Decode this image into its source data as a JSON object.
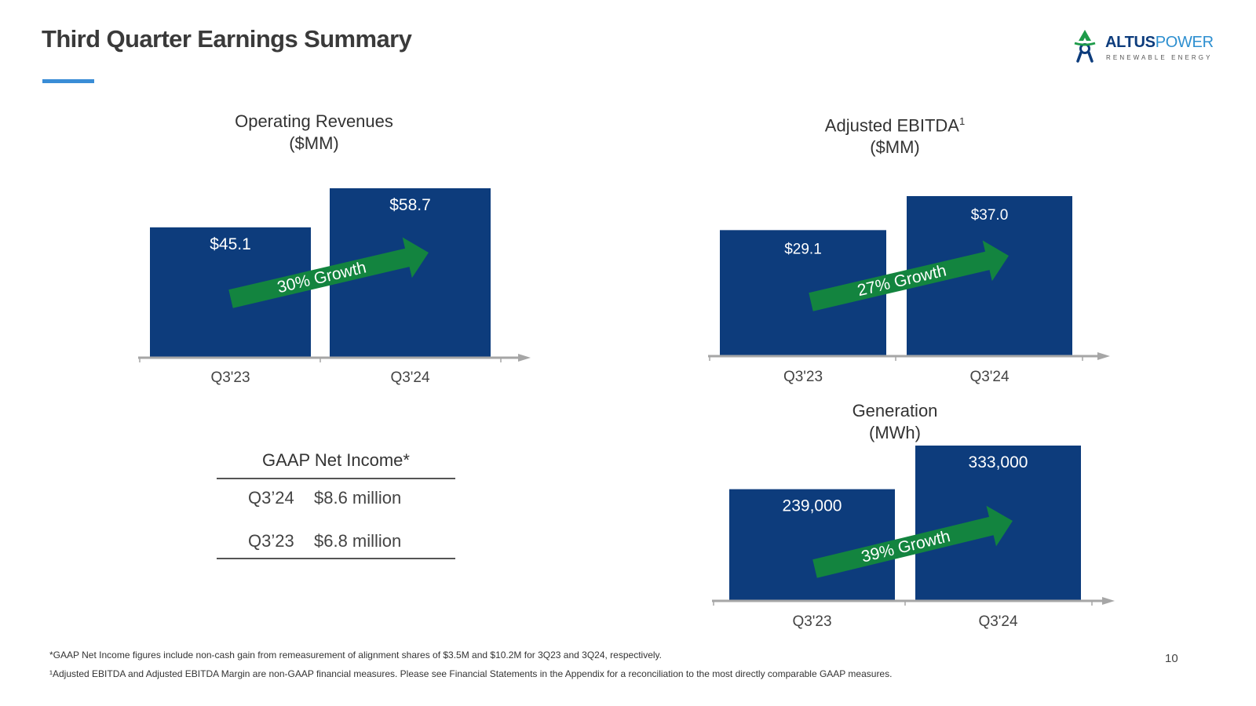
{
  "slide": {
    "title": "Third Quarter Earnings Summary",
    "page_number": "10"
  },
  "logo": {
    "word_altus": "ALTUS",
    "word_power": "POWER",
    "tagline": "RENEWABLE ENERGY",
    "colors": {
      "navy": "#0d3c7c",
      "blue": "#2d8fd0",
      "green": "#1e9b4a"
    }
  },
  "colors": {
    "bar": "#0d3c7c",
    "growth_arrow": "#13843f",
    "axis": "#a6a6a6"
  },
  "chart_data": [
    {
      "type": "bar",
      "title": "Operating Revenues",
      "units": "($MM)",
      "categories": [
        "Q3'23",
        "Q3'24"
      ],
      "values": [
        45.1,
        58.7
      ],
      "value_labels": [
        "$45.1",
        "$58.7"
      ],
      "annotation": "30% Growth",
      "ylim": [
        0,
        58.7
      ]
    },
    {
      "type": "bar",
      "title": "Adjusted EBITDA",
      "title_superscript": "1",
      "units": "($MM)",
      "categories": [
        "Q3'23",
        "Q3'24"
      ],
      "values": [
        29.1,
        37.0
      ],
      "value_labels": [
        "$29.1",
        "$37.0"
      ],
      "annotation": "27% Growth",
      "ylim": [
        0,
        37.0
      ]
    },
    {
      "type": "bar",
      "title": "Generation",
      "units": "(MWh)",
      "categories": [
        "Q3'23",
        "Q3'24"
      ],
      "values": [
        239000,
        333000
      ],
      "value_labels": [
        "239,000",
        "333,000"
      ],
      "annotation": "39% Growth",
      "ylim": [
        0,
        333000
      ]
    }
  ],
  "net_income": {
    "title": "GAAP Net Income*",
    "rows": [
      {
        "quarter": "Q3’24",
        "value": "$8.6 million"
      },
      {
        "quarter": "Q3’23",
        "value": "$6.8 million"
      }
    ]
  },
  "footnotes": [
    "*GAAP Net Income figures include non-cash gain from remeasurement of alignment shares of $3.5M and $10.2M for 3Q23 and 3Q24, respectively.",
    "¹Adjusted EBITDA and Adjusted EBITDA Margin are non-GAAP financial measures. Please see Financial Statements in the Appendix for a reconciliation to the most directly comparable GAAP measures."
  ]
}
